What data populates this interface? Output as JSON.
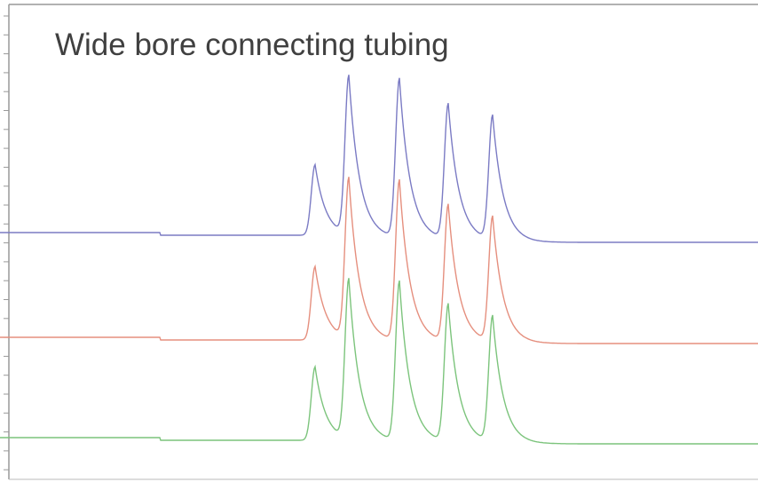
{
  "title": "Wide bore connecting tubing"
}
